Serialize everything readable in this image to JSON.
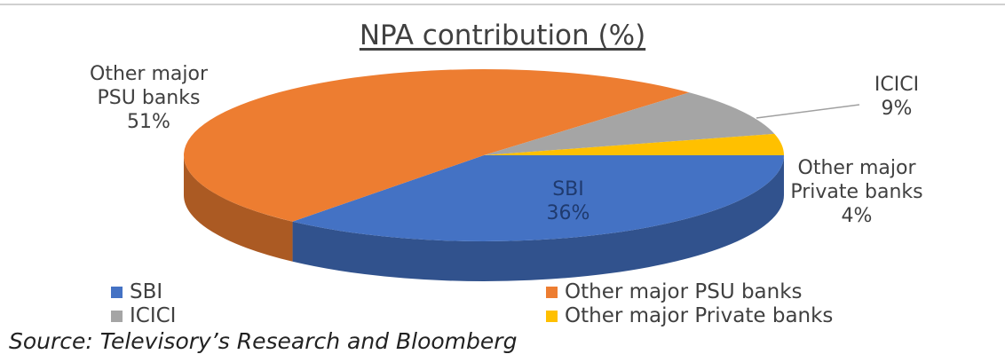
{
  "chart_data": {
    "type": "pie",
    "title": "NPA contribution (%)",
    "categories": [
      "SBI",
      "Other major PSU banks",
      "ICICI",
      "Other major Private banks"
    ],
    "values": [
      36,
      51,
      9,
      4
    ],
    "value_labels": [
      "36%",
      "51%",
      "9%",
      "4%"
    ],
    "colors": [
      "#4472c4",
      "#ed7d31",
      "#a5a5a5",
      "#ffc000"
    ],
    "legend": "bottom",
    "source": "Source: Televisory’s Research and Bloomberg"
  }
}
